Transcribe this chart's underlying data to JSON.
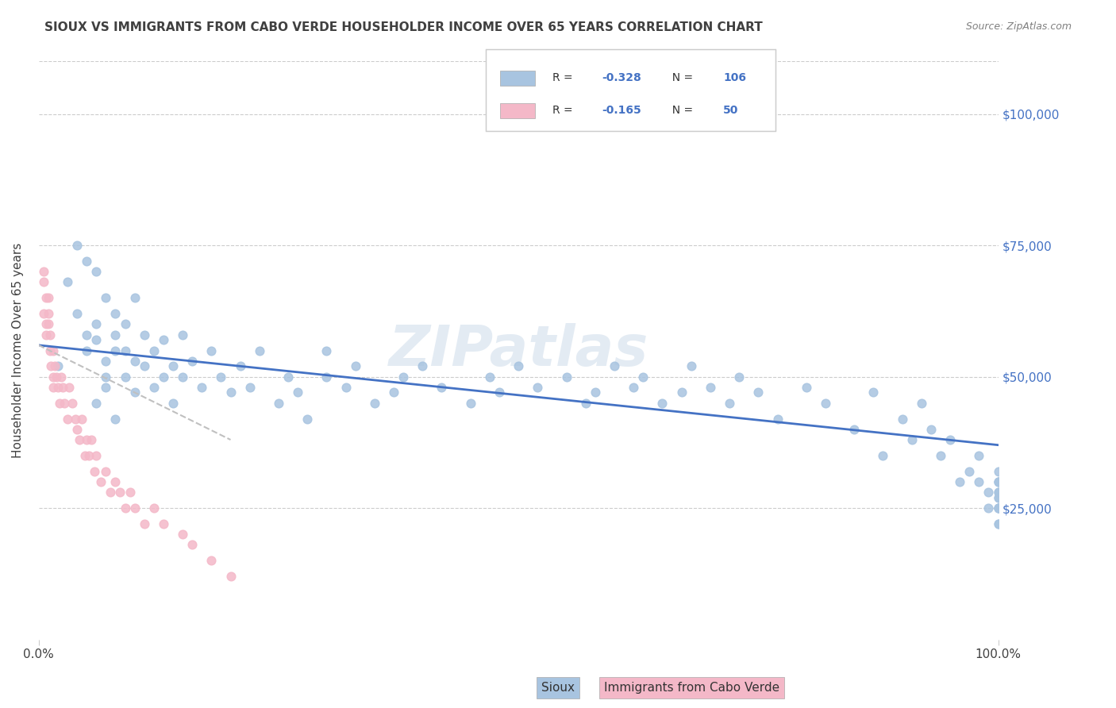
{
  "title": "SIOUX VS IMMIGRANTS FROM CABO VERDE HOUSEHOLDER INCOME OVER 65 YEARS CORRELATION CHART",
  "source_text": "Source: ZipAtlas.com",
  "xlabel": "",
  "ylabel": "Householder Income Over 65 years",
  "xmin": 0.0,
  "xmax": 1.0,
  "ymin": 0,
  "ymax": 110000,
  "xtick_labels": [
    "0.0%",
    "100.0%"
  ],
  "ytick_labels": [
    "$25,000",
    "$50,000",
    "$75,000",
    "$100,000"
  ],
  "ytick_values": [
    25000,
    50000,
    75000,
    100000
  ],
  "legend_r_sioux": "-0.328",
  "legend_n_sioux": "106",
  "legend_r_cabo": "-0.165",
  "legend_n_cabo": "50",
  "legend_label_sioux": "Sioux",
  "legend_label_cabo": "Immigrants from Cabo Verde",
  "sioux_color": "#a8c4e0",
  "sioux_line_color": "#4472c4",
  "cabo_color": "#f4b8c8",
  "cabo_line_color": "#e06080",
  "watermark": "ZIPatlas",
  "watermark_color": "#c8d8e8",
  "title_color": "#404040",
  "sioux_scatter_x": [
    0.02,
    0.03,
    0.04,
    0.04,
    0.05,
    0.05,
    0.05,
    0.06,
    0.06,
    0.06,
    0.06,
    0.07,
    0.07,
    0.07,
    0.07,
    0.08,
    0.08,
    0.08,
    0.08,
    0.09,
    0.09,
    0.09,
    0.1,
    0.1,
    0.1,
    0.11,
    0.11,
    0.12,
    0.12,
    0.13,
    0.13,
    0.14,
    0.14,
    0.15,
    0.15,
    0.16,
    0.17,
    0.18,
    0.19,
    0.2,
    0.21,
    0.22,
    0.23,
    0.25,
    0.26,
    0.27,
    0.28,
    0.3,
    0.3,
    0.32,
    0.33,
    0.35,
    0.37,
    0.38,
    0.4,
    0.42,
    0.45,
    0.47,
    0.48,
    0.5,
    0.52,
    0.55,
    0.57,
    0.58,
    0.6,
    0.62,
    0.63,
    0.65,
    0.67,
    0.68,
    0.7,
    0.72,
    0.73,
    0.75,
    0.77,
    0.8,
    0.82,
    0.85,
    0.87,
    0.88,
    0.9,
    0.91,
    0.92,
    0.93,
    0.94,
    0.95,
    0.96,
    0.97,
    0.98,
    0.98,
    0.99,
    0.99,
    1.0,
    1.0,
    1.0,
    1.0,
    1.0,
    1.0,
    1.0,
    1.0,
    1.0,
    1.0,
    1.0,
    1.0,
    1.0,
    1.0
  ],
  "sioux_scatter_y": [
    52000,
    68000,
    62000,
    75000,
    58000,
    55000,
    72000,
    60000,
    57000,
    70000,
    45000,
    53000,
    65000,
    50000,
    48000,
    55000,
    58000,
    62000,
    42000,
    50000,
    55000,
    60000,
    53000,
    47000,
    65000,
    52000,
    58000,
    48000,
    55000,
    50000,
    57000,
    52000,
    45000,
    58000,
    50000,
    53000,
    48000,
    55000,
    50000,
    47000,
    52000,
    48000,
    55000,
    45000,
    50000,
    47000,
    42000,
    55000,
    50000,
    48000,
    52000,
    45000,
    47000,
    50000,
    52000,
    48000,
    45000,
    50000,
    47000,
    52000,
    48000,
    50000,
    45000,
    47000,
    52000,
    48000,
    50000,
    45000,
    47000,
    52000,
    48000,
    45000,
    50000,
    47000,
    42000,
    48000,
    45000,
    40000,
    47000,
    35000,
    42000,
    38000,
    45000,
    40000,
    35000,
    38000,
    30000,
    32000,
    35000,
    30000,
    25000,
    28000,
    32000,
    28000,
    25000,
    30000,
    27000,
    22000,
    25000,
    30000,
    28000,
    25000,
    22000,
    27000,
    30000,
    25000
  ],
  "cabo_scatter_x": [
    0.005,
    0.005,
    0.005,
    0.008,
    0.008,
    0.008,
    0.01,
    0.01,
    0.01,
    0.012,
    0.012,
    0.013,
    0.015,
    0.015,
    0.015,
    0.017,
    0.018,
    0.02,
    0.022,
    0.023,
    0.025,
    0.027,
    0.03,
    0.032,
    0.035,
    0.038,
    0.04,
    0.042,
    0.045,
    0.048,
    0.05,
    0.052,
    0.055,
    0.058,
    0.06,
    0.065,
    0.07,
    0.075,
    0.08,
    0.085,
    0.09,
    0.095,
    0.1,
    0.11,
    0.12,
    0.13,
    0.15,
    0.16,
    0.18,
    0.2
  ],
  "cabo_scatter_y": [
    70000,
    68000,
    62000,
    65000,
    60000,
    58000,
    65000,
    62000,
    60000,
    58000,
    55000,
    52000,
    55000,
    50000,
    48000,
    52000,
    50000,
    48000,
    45000,
    50000,
    48000,
    45000,
    42000,
    48000,
    45000,
    42000,
    40000,
    38000,
    42000,
    35000,
    38000,
    35000,
    38000,
    32000,
    35000,
    30000,
    32000,
    28000,
    30000,
    28000,
    25000,
    28000,
    25000,
    22000,
    25000,
    22000,
    20000,
    18000,
    15000,
    12000
  ],
  "sioux_trend_x": [
    0.0,
    1.0
  ],
  "sioux_trend_y": [
    56000,
    37000
  ],
  "cabo_trend_x": [
    0.0,
    0.2
  ],
  "cabo_trend_y": [
    56000,
    38000
  ],
  "cabo_trend_dash": [
    6,
    4
  ]
}
